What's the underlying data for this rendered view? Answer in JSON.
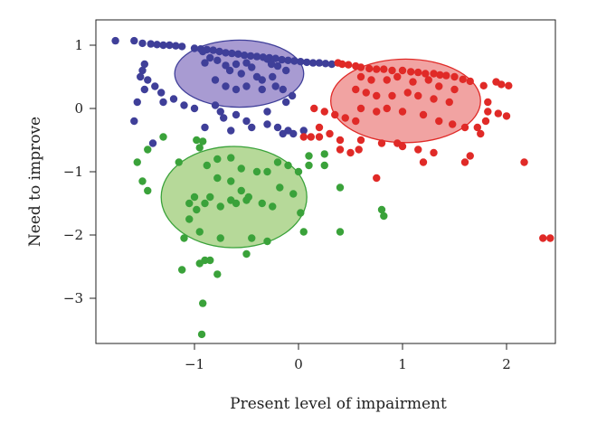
{
  "chart_data": {
    "type": "scatter",
    "title": "",
    "xlabel": "Present level of impairment",
    "ylabel": "Need to improve",
    "xlim": [
      -1.9,
      2.5
    ],
    "ylim": [
      -3.7,
      1.2
    ],
    "xticks": [
      -1,
      0,
      1,
      2
    ],
    "yticks": [
      -3,
      -2,
      -1,
      0,
      1
    ],
    "grid": false,
    "legend": "none",
    "series": [
      {
        "color": "#3f3f99",
        "fill": "#a89bd2",
        "ellipse": {
          "cx": -0.57,
          "cy": 0.55,
          "rx": 0.62,
          "ry": 0.53
        },
        "points": [
          [
            -1.76,
            1.07
          ],
          [
            -1.58,
            1.07
          ],
          [
            -1.5,
            1.03
          ],
          [
            -1.42,
            1.02
          ],
          [
            -1.36,
            1.01
          ],
          [
            -1.3,
            1.0
          ],
          [
            -1.24,
            1.0
          ],
          [
            -1.18,
            0.99
          ],
          [
            -1.12,
            0.98
          ],
          [
            -1.0,
            0.95
          ],
          [
            -0.94,
            0.94
          ],
          [
            -0.88,
            0.93
          ],
          [
            -0.82,
            0.92
          ],
          [
            -0.76,
            0.9
          ],
          [
            -0.7,
            0.88
          ],
          [
            -0.64,
            0.87
          ],
          [
            -0.58,
            0.86
          ],
          [
            -0.52,
            0.84
          ],
          [
            -0.46,
            0.83
          ],
          [
            -0.4,
            0.82
          ],
          [
            -0.34,
            0.81
          ],
          [
            -0.28,
            0.8
          ],
          [
            -0.22,
            0.79
          ],
          [
            -0.16,
            0.77
          ],
          [
            -0.1,
            0.76
          ],
          [
            -0.04,
            0.75
          ],
          [
            0.02,
            0.74
          ],
          [
            0.08,
            0.73
          ],
          [
            0.14,
            0.72
          ],
          [
            0.2,
            0.72
          ],
          [
            0.26,
            0.71
          ],
          [
            0.32,
            0.7
          ],
          [
            -0.92,
            0.9
          ],
          [
            -0.85,
            0.8
          ],
          [
            -0.78,
            0.76
          ],
          [
            -0.9,
            0.72
          ],
          [
            -0.7,
            0.68
          ],
          [
            -0.6,
            0.7
          ],
          [
            -0.5,
            0.72
          ],
          [
            -0.45,
            0.65
          ],
          [
            -0.3,
            0.78
          ],
          [
            -0.26,
            0.7
          ],
          [
            -0.2,
            0.67
          ],
          [
            -0.12,
            0.6
          ],
          [
            -0.66,
            0.6
          ],
          [
            -0.55,
            0.55
          ],
          [
            -0.4,
            0.5
          ],
          [
            -0.35,
            0.45
          ],
          [
            -0.25,
            0.5
          ],
          [
            -0.8,
            0.45
          ],
          [
            -0.7,
            0.35
          ],
          [
            -0.6,
            0.3
          ],
          [
            -0.5,
            0.35
          ],
          [
            -0.35,
            0.3
          ],
          [
            -0.22,
            0.35
          ],
          [
            -0.15,
            0.3
          ],
          [
            -0.06,
            0.2
          ],
          [
            -0.12,
            0.1
          ],
          [
            -1.48,
            0.7
          ],
          [
            -1.5,
            0.6
          ],
          [
            -1.52,
            0.5
          ],
          [
            -1.45,
            0.45
          ],
          [
            -1.38,
            0.35
          ],
          [
            -1.32,
            0.25
          ],
          [
            -1.48,
            0.3
          ],
          [
            -1.55,
            0.1
          ],
          [
            -1.3,
            0.1
          ],
          [
            -1.2,
            0.15
          ],
          [
            -1.1,
            0.05
          ],
          [
            -1.0,
            0.0
          ],
          [
            -0.8,
            0.05
          ],
          [
            -0.75,
            -0.05
          ],
          [
            -0.72,
            -0.15
          ],
          [
            -0.6,
            -0.1
          ],
          [
            -0.5,
            -0.2
          ],
          [
            -0.45,
            -0.3
          ],
          [
            -0.3,
            -0.25
          ],
          [
            -0.2,
            -0.3
          ],
          [
            -0.1,
            -0.35
          ],
          [
            -0.05,
            -0.4
          ],
          [
            0.05,
            -0.35
          ],
          [
            -1.58,
            -0.2
          ],
          [
            -1.4,
            -0.55
          ],
          [
            -0.9,
            -0.3
          ],
          [
            -0.65,
            -0.35
          ],
          [
            -0.15,
            -0.4
          ],
          [
            -0.3,
            -0.05
          ]
        ]
      },
      {
        "color": "#e02a27",
        "fill": "#f1a3a2",
        "ellipse": {
          "cx": 1.03,
          "cy": 0.12,
          "rx": 0.72,
          "ry": 0.66
        },
        "points": [
          [
            0.38,
            0.72
          ],
          [
            0.42,
            0.7
          ],
          [
            0.48,
            0.69
          ],
          [
            0.55,
            0.67
          ],
          [
            0.6,
            0.65
          ],
          [
            0.68,
            0.63
          ],
          [
            0.75,
            0.62
          ],
          [
            0.82,
            0.62
          ],
          [
            0.9,
            0.6
          ],
          [
            1.0,
            0.6
          ],
          [
            1.08,
            0.58
          ],
          [
            1.15,
            0.57
          ],
          [
            1.22,
            0.55
          ],
          [
            1.3,
            0.55
          ],
          [
            1.36,
            0.53
          ],
          [
            1.42,
            0.52
          ],
          [
            1.5,
            0.5
          ],
          [
            1.58,
            0.46
          ],
          [
            1.65,
            0.43
          ],
          [
            1.9,
            0.42
          ],
          [
            1.95,
            0.38
          ],
          [
            2.02,
            0.36
          ],
          [
            1.78,
            0.36
          ],
          [
            1.82,
            0.1
          ],
          [
            1.82,
            -0.05
          ],
          [
            1.92,
            -0.08
          ],
          [
            2.0,
            -0.12
          ],
          [
            1.8,
            -0.2
          ],
          [
            1.75,
            -0.4
          ],
          [
            0.6,
            0.5
          ],
          [
            0.7,
            0.45
          ],
          [
            0.85,
            0.45
          ],
          [
            0.95,
            0.5
          ],
          [
            1.1,
            0.42
          ],
          [
            1.25,
            0.45
          ],
          [
            1.35,
            0.35
          ],
          [
            1.5,
            0.3
          ],
          [
            0.55,
            0.3
          ],
          [
            0.65,
            0.25
          ],
          [
            0.75,
            0.2
          ],
          [
            0.9,
            0.2
          ],
          [
            1.05,
            0.25
          ],
          [
            1.15,
            0.2
          ],
          [
            1.3,
            0.15
          ],
          [
            1.45,
            0.1
          ],
          [
            0.6,
            0.0
          ],
          [
            0.75,
            -0.05
          ],
          [
            0.85,
            0.0
          ],
          [
            1.0,
            -0.05
          ],
          [
            1.2,
            -0.1
          ],
          [
            1.35,
            -0.2
          ],
          [
            1.48,
            -0.25
          ],
          [
            1.6,
            -0.3
          ],
          [
            1.72,
            -0.3
          ],
          [
            0.15,
            0.0
          ],
          [
            0.25,
            -0.05
          ],
          [
            0.35,
            -0.1
          ],
          [
            0.45,
            -0.15
          ],
          [
            0.55,
            -0.2
          ],
          [
            0.2,
            -0.3
          ],
          [
            0.3,
            -0.4
          ],
          [
            0.4,
            -0.5
          ],
          [
            0.2,
            -0.45
          ],
          [
            0.12,
            -0.45
          ],
          [
            0.05,
            -0.45
          ],
          [
            0.6,
            -0.5
          ],
          [
            0.8,
            -0.55
          ],
          [
            0.95,
            -0.55
          ],
          [
            1.0,
            -0.6
          ],
          [
            1.15,
            -0.65
          ],
          [
            1.3,
            -0.7
          ],
          [
            0.4,
            -0.65
          ],
          [
            0.5,
            -0.7
          ],
          [
            0.58,
            -0.65
          ],
          [
            1.2,
            -0.85
          ],
          [
            1.6,
            -0.85
          ],
          [
            1.65,
            -0.75
          ],
          [
            2.17,
            -0.85
          ],
          [
            0.75,
            -1.1
          ],
          [
            2.35,
            -2.05
          ],
          [
            2.42,
            -2.05
          ]
        ]
      },
      {
        "color": "#3aa23a",
        "fill": "#b6d999",
        "ellipse": {
          "cx": -0.62,
          "cy": -1.4,
          "rx": 0.7,
          "ry": 0.8
        },
        "points": [
          [
            -1.3,
            -0.45
          ],
          [
            -1.55,
            -0.85
          ],
          [
            -1.45,
            -0.65
          ],
          [
            -1.5,
            -1.15
          ],
          [
            -1.45,
            -1.3
          ],
          [
            -1.15,
            -0.85
          ],
          [
            -0.98,
            -0.5
          ],
          [
            -0.92,
            -0.52
          ],
          [
            -0.95,
            -0.62
          ],
          [
            -0.88,
            -0.9
          ],
          [
            -0.78,
            -0.8
          ],
          [
            -0.65,
            -0.78
          ],
          [
            -0.55,
            -0.95
          ],
          [
            -0.4,
            -1.0
          ],
          [
            -0.3,
            -1.0
          ],
          [
            -0.2,
            -0.85
          ],
          [
            -0.1,
            -0.9
          ],
          [
            0.0,
            -1.0
          ],
          [
            0.1,
            -0.9
          ],
          [
            0.25,
            -0.9
          ],
          [
            -0.78,
            -1.1
          ],
          [
            -0.65,
            -1.15
          ],
          [
            -0.55,
            -1.3
          ],
          [
            -0.48,
            -1.4
          ],
          [
            -0.35,
            -1.5
          ],
          [
            -0.18,
            -1.25
          ],
          [
            -0.05,
            -1.35
          ],
          [
            0.02,
            -1.65
          ],
          [
            -1.0,
            -1.4
          ],
          [
            -1.05,
            -1.5
          ],
          [
            -0.98,
            -1.6
          ],
          [
            -0.9,
            -1.5
          ],
          [
            -0.85,
            -1.4
          ],
          [
            -0.75,
            -1.55
          ],
          [
            -0.65,
            -1.45
          ],
          [
            -0.6,
            -1.5
          ],
          [
            -0.5,
            -1.45
          ],
          [
            -0.25,
            -1.55
          ],
          [
            -1.05,
            -1.75
          ],
          [
            -0.95,
            -1.95
          ],
          [
            -1.1,
            -2.05
          ],
          [
            -0.45,
            -2.05
          ],
          [
            -0.3,
            -2.1
          ],
          [
            0.05,
            -1.95
          ],
          [
            -0.75,
            -2.05
          ],
          [
            -0.5,
            -2.3
          ],
          [
            -0.9,
            -2.4
          ],
          [
            -0.85,
            -2.4
          ],
          [
            -0.95,
            -2.45
          ],
          [
            -1.12,
            -2.55
          ],
          [
            -0.78,
            -2.62
          ],
          [
            0.4,
            -1.25
          ],
          [
            0.8,
            -1.6
          ],
          [
            0.82,
            -1.7
          ],
          [
            0.4,
            -1.95
          ],
          [
            -0.92,
            -3.08
          ],
          [
            -0.93,
            -3.57
          ],
          [
            0.25,
            -0.72
          ],
          [
            0.1,
            -0.75
          ]
        ]
      }
    ]
  }
}
